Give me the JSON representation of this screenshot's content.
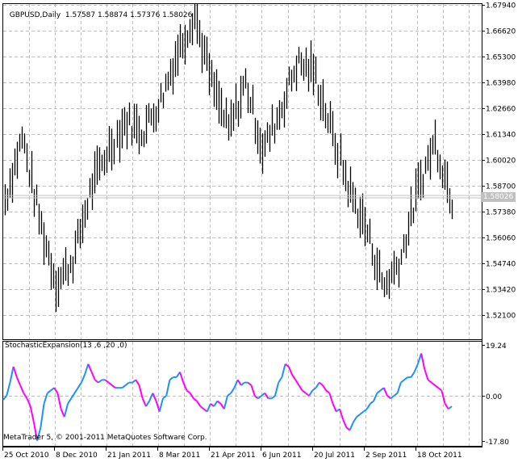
{
  "chart_data": [
    {
      "type": "bar",
      "subtype": "ohlc",
      "title": "GBPUSD,Daily",
      "header": {
        "symbol_timeframe": "GBPUSD,Daily",
        "open": "1.57587",
        "high": "1.58874",
        "low": "1.57376",
        "close": "1.58026"
      },
      "ylim": [
        1.508,
        1.6794
      ],
      "y_ticks": [
        "1.67940",
        "1.66620",
        "1.65300",
        "1.63980",
        "1.62660",
        "1.61340",
        "1.60020",
        "1.58700",
        "1.57380",
        "1.56060",
        "1.54740",
        "1.53420",
        "1.52100"
      ],
      "current_price": "1.58026",
      "x_ticks": [
        "25 Oct 2010",
        "8 Dec 2010",
        "21 Jan 2011",
        "8 Mar 2011",
        "21 Apr 2011",
        "6 Jun 2011",
        "20 Jul 2011",
        "2 Sep 2011",
        "18 Oct 2011"
      ],
      "grid": true,
      "approx_close_path": [
        {
          "date": "25 Oct 2010",
          "price": 1.58
        },
        {
          "date": "Nov 2010",
          "price": 1.612
        },
        {
          "date": "late Nov 2010",
          "price": 1.57
        },
        {
          "date": "Dec 2010",
          "price": 1.537
        },
        {
          "date": "late Dec 2010",
          "price": 1.55
        },
        {
          "date": "Jan 2011",
          "price": 1.585
        },
        {
          "date": "21 Jan 2011",
          "price": 1.605
        },
        {
          "date": "Feb 2011",
          "price": 1.62
        },
        {
          "date": "Mar 2011",
          "price": 1.615
        },
        {
          "date": "late Mar 2011",
          "price": 1.63
        },
        {
          "date": "21 Apr 2011",
          "price": 1.655
        },
        {
          "date": "late Apr 2011",
          "price": 1.675
        },
        {
          "date": "May 2011",
          "price": 1.64
        },
        {
          "date": "late May 2011",
          "price": 1.615
        },
        {
          "date": "6 Jun 2011",
          "price": 1.64
        },
        {
          "date": "late Jun 2011",
          "price": 1.605
        },
        {
          "date": "20 Jul 2011",
          "price": 1.625
        },
        {
          "date": "late Jul 2011",
          "price": 1.65
        },
        {
          "date": "Aug 2011",
          "price": 1.645
        },
        {
          "date": "late Aug 2011",
          "price": 1.615
        },
        {
          "date": "2 Sep 2011",
          "price": 1.585
        },
        {
          "date": "mid Sep 2011",
          "price": 1.565
        },
        {
          "date": "late Sep 2011",
          "price": 1.535
        },
        {
          "date": "early Oct 2011",
          "price": 1.55
        },
        {
          "date": "18 Oct 2011",
          "price": 1.585
        },
        {
          "date": "late Oct 2011",
          "price": 1.61
        },
        {
          "date": "Nov 2011",
          "price": 1.58
        }
      ]
    },
    {
      "type": "line",
      "title": "StochasticExpansion(13 ,6 ,20 ,0)",
      "ylim": [
        -17.8,
        19.24
      ],
      "y_ticks": [
        "19.24",
        "0.00",
        "-17.80"
      ],
      "x_ticks": [
        "25 Oct 2010",
        "8 Dec 2010",
        "21 Jan 2011",
        "8 Mar 2011",
        "21 Apr 2011",
        "6 Jun 2011",
        "20 Jul 2011",
        "2 Sep 2011",
        "18 Oct 2011"
      ],
      "series_colors": {
        "rising": "#1e90ff",
        "falling": "#ff00ff"
      },
      "approx_values": [
        -1.5,
        0,
        5,
        11,
        7,
        4,
        1,
        -1,
        -4,
        -10,
        -17,
        -12,
        -3,
        1,
        2,
        3,
        1,
        -5,
        -8,
        -3,
        -1,
        1,
        3,
        5,
        8,
        12,
        9,
        6,
        5,
        6,
        6,
        5,
        4,
        3,
        3,
        3,
        4,
        5,
        5,
        6,
        4,
        -1,
        -4,
        -2,
        1,
        -2,
        -6,
        -1,
        0,
        6,
        7,
        7,
        9,
        5,
        2,
        1,
        -1,
        -2,
        -4,
        -5,
        -6,
        -3,
        -4,
        -2,
        -3,
        -5,
        0,
        1,
        3,
        6,
        4,
        5,
        5,
        4,
        0,
        -1,
        0,
        1,
        -1,
        -1,
        0,
        5,
        7,
        12,
        11,
        8,
        6,
        4,
        2,
        1,
        0,
        2,
        3,
        5,
        4,
        2,
        1,
        -3,
        -6,
        -5,
        -9,
        -12,
        -13,
        -10,
        -8,
        -7,
        -6,
        -5,
        -3,
        -2,
        1,
        2,
        3,
        0,
        -1,
        0,
        1,
        5,
        6,
        7,
        7,
        9,
        12,
        16,
        10,
        6,
        5,
        4,
        3,
        2,
        -3,
        -5,
        -4
      ]
    }
  ],
  "main_chart": {
    "title": "GBPUSD,Daily",
    "ohlc_text": "1.57587 1.58874 1.57376 1.58026",
    "price_labels": [
      "1.67940",
      "1.66620",
      "1.65300",
      "1.63980",
      "1.62660",
      "1.61340",
      "1.60020",
      "1.58700",
      "1.57380",
      "1.56060",
      "1.54740",
      "1.53420",
      "1.52100"
    ],
    "current_price": "1.58026"
  },
  "indicator": {
    "title": "StochasticExpansion(13 ,6 ,20 ,0)",
    "labels": [
      "19.24",
      "0.00",
      "-17.80"
    ]
  },
  "copyright": "MetaTrader 5, © 2001-2011 MetaQuotes Software Corp.",
  "time_axis": {
    "labels": [
      "25 Oct 2010",
      "8 Dec 2010",
      "21 Jan 2011",
      "8 Mar 2011",
      "21 Apr 2011",
      "6 Jun 2011",
      "20 Jul 2011",
      "2 Sep 2011",
      "18 Oct 2011"
    ]
  },
  "colors": {
    "bars": "#000000",
    "grid": "#c0c0c0",
    "rising": "#1e90ff",
    "falling": "#ff00ff",
    "price_tag_bg": "#c0c0c0"
  }
}
